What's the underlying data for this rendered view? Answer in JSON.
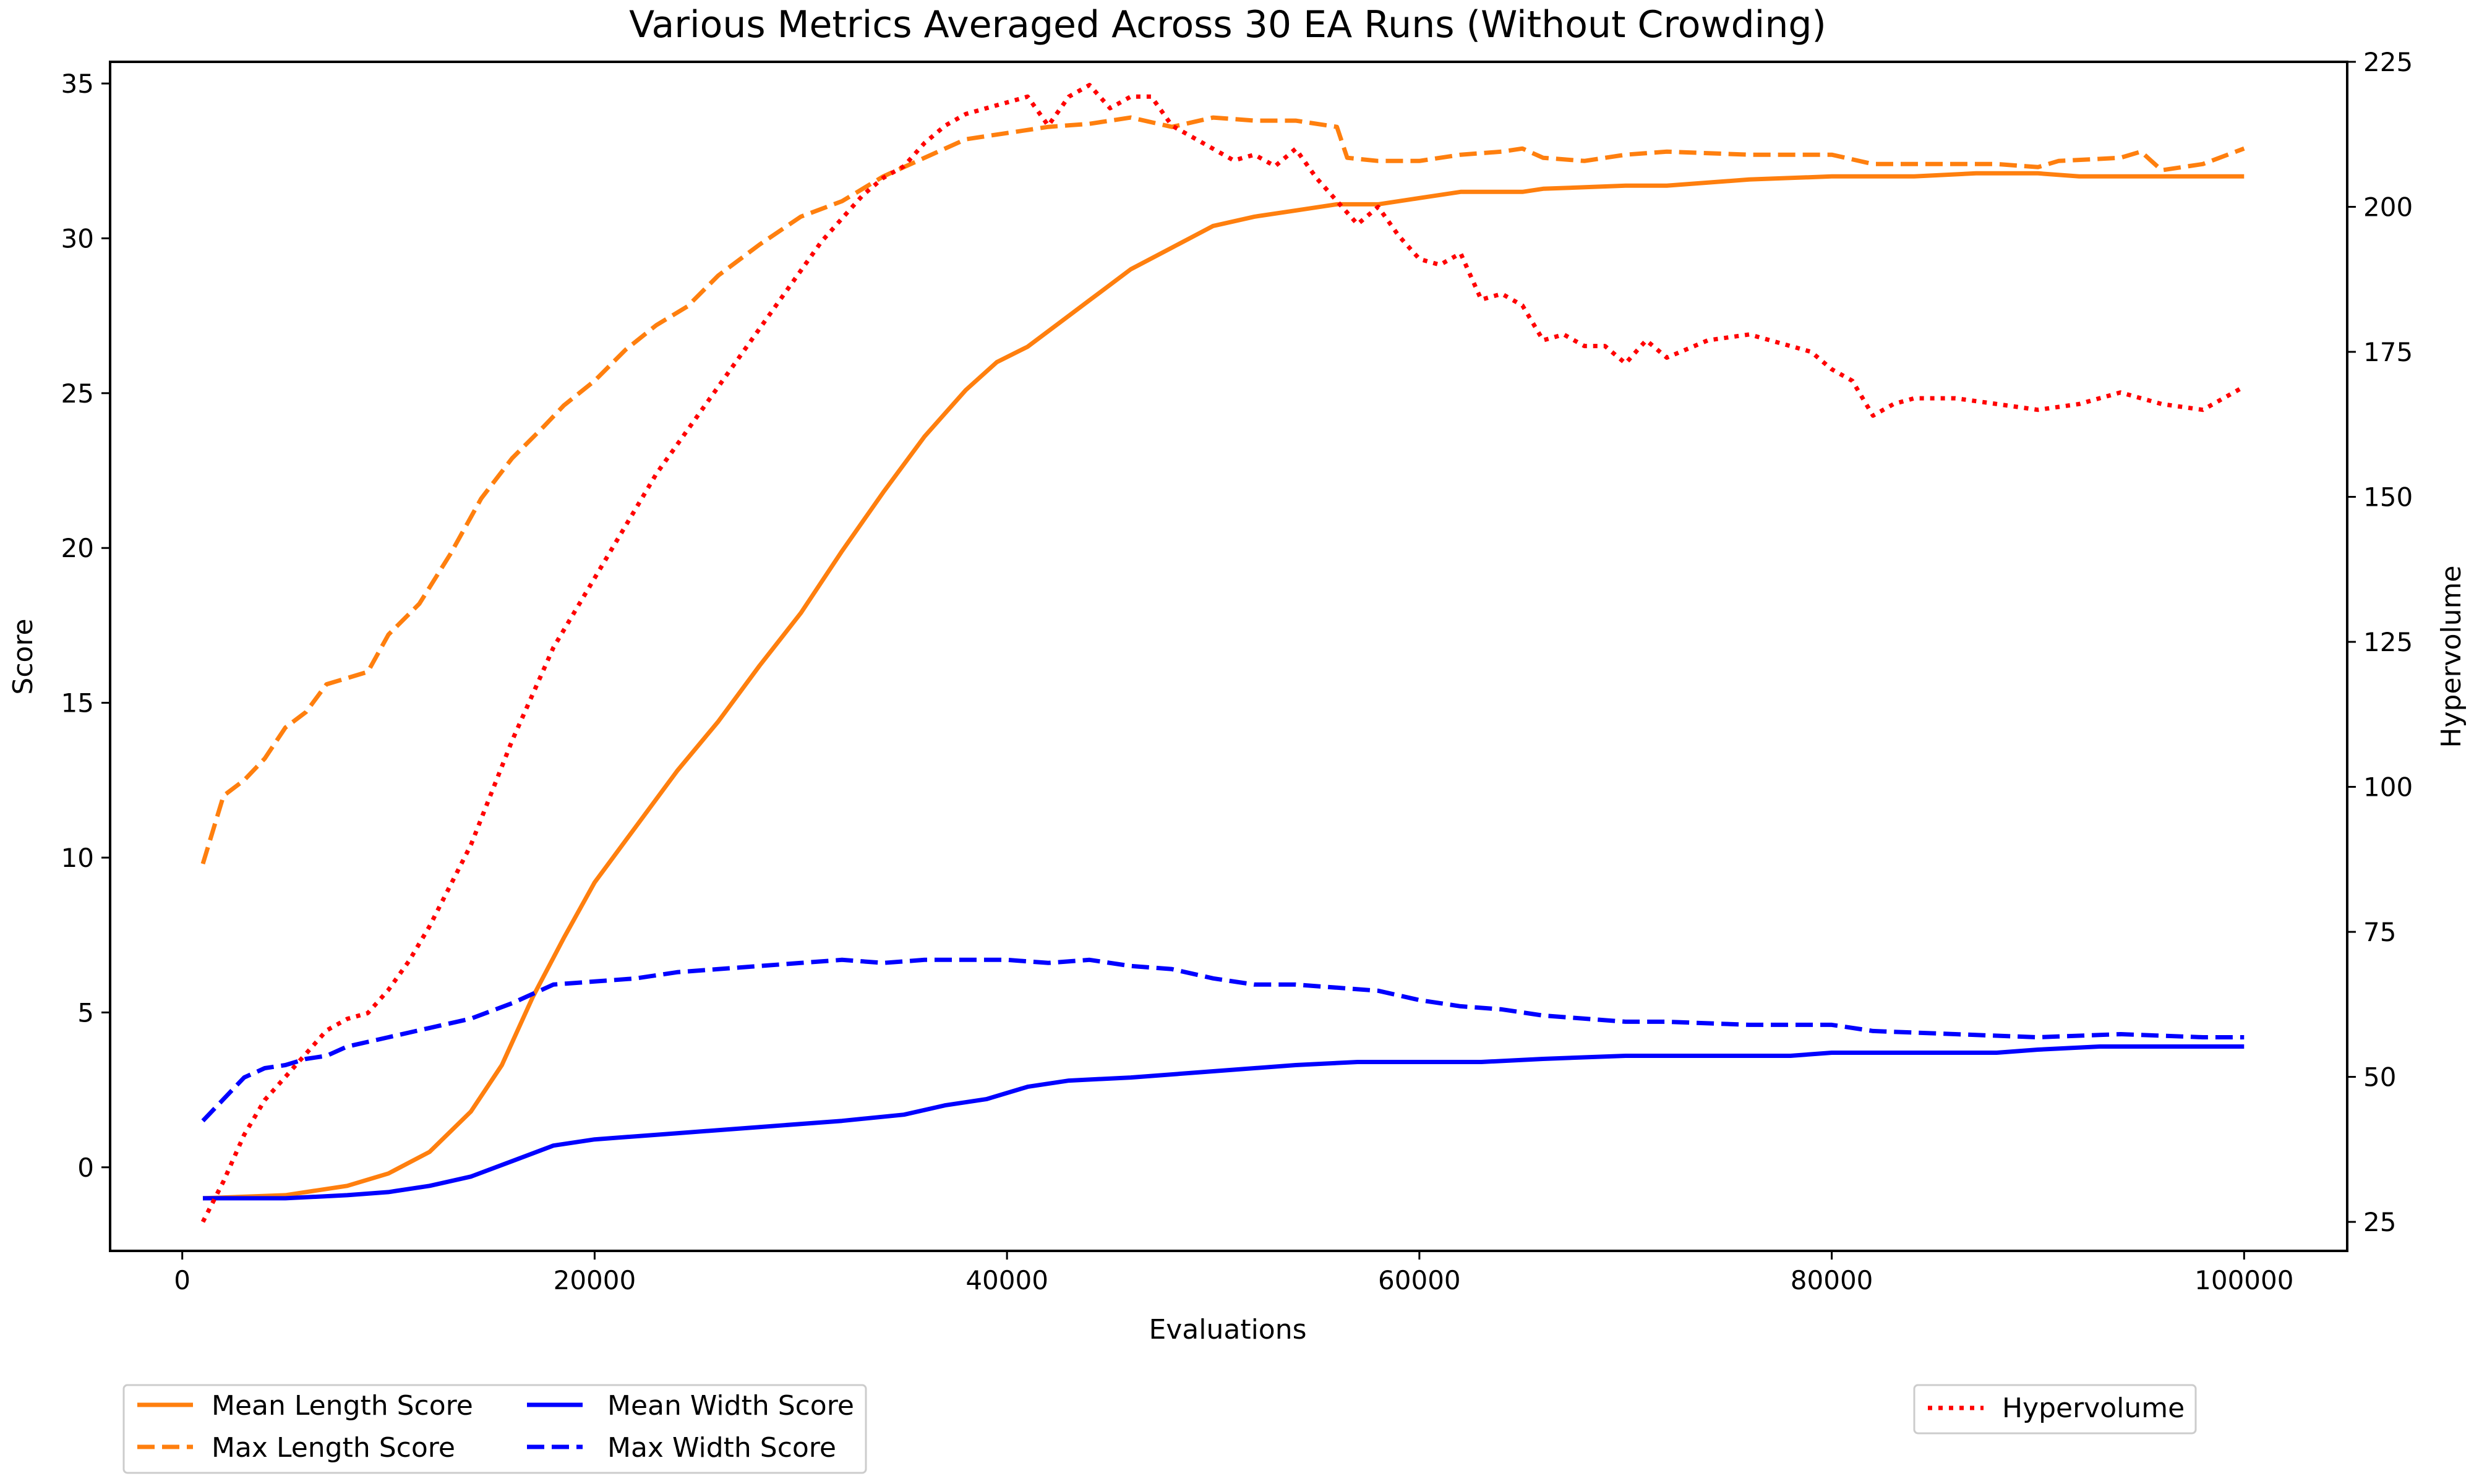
{
  "chart_data": {
    "type": "line",
    "title": "Various Metrics Averaged Across 30 EA Runs (Without Crowding)",
    "xlabel": "Evaluations",
    "ylabel": "Score",
    "y2label": "Hypervolume",
    "xlim": [
      -3500,
      105000
    ],
    "ylim": [
      -2.7,
      35.7
    ],
    "y2lim": [
      20,
      225
    ],
    "xticks": [
      0,
      20000,
      40000,
      60000,
      80000,
      100000
    ],
    "yticks": [
      0,
      5,
      10,
      15,
      20,
      25,
      30,
      35
    ],
    "y2ticks": [
      25,
      50,
      75,
      100,
      125,
      150,
      175,
      200,
      225
    ],
    "grid": false,
    "legend_left_placement": "below-left",
    "legend_right_placement": "below-right",
    "series": [
      {
        "name": "Mean Length Score",
        "axis": "left",
        "color": "#ff7f0e",
        "style": "solid",
        "points": [
          [
            1000,
            -1.0
          ],
          [
            5000,
            -0.9
          ],
          [
            8000,
            -0.6
          ],
          [
            10000,
            -0.2
          ],
          [
            12000,
            0.5
          ],
          [
            14000,
            1.8
          ],
          [
            15500,
            3.3
          ],
          [
            17000,
            5.5
          ],
          [
            18500,
            7.4
          ],
          [
            20000,
            9.2
          ],
          [
            22000,
            11.0
          ],
          [
            24000,
            12.8
          ],
          [
            26000,
            14.4
          ],
          [
            28000,
            16.2
          ],
          [
            30000,
            17.9
          ],
          [
            32000,
            19.9
          ],
          [
            34000,
            21.8
          ],
          [
            36000,
            23.6
          ],
          [
            38000,
            25.1
          ],
          [
            39500,
            26.0
          ],
          [
            41000,
            26.5
          ],
          [
            42000,
            27.0
          ],
          [
            44000,
            28.0
          ],
          [
            46000,
            29.0
          ],
          [
            48000,
            29.7
          ],
          [
            50000,
            30.4
          ],
          [
            52000,
            30.7
          ],
          [
            54000,
            30.9
          ],
          [
            56000,
            31.1
          ],
          [
            58000,
            31.1
          ],
          [
            60000,
            31.3
          ],
          [
            62000,
            31.5
          ],
          [
            65000,
            31.5
          ],
          [
            66000,
            31.6
          ],
          [
            70000,
            31.7
          ],
          [
            72000,
            31.7
          ],
          [
            74000,
            31.8
          ],
          [
            76000,
            31.9
          ],
          [
            80000,
            32.0
          ],
          [
            84000,
            32.0
          ],
          [
            87000,
            32.1
          ],
          [
            90000,
            32.1
          ],
          [
            92000,
            32.0
          ],
          [
            95000,
            32.0
          ],
          [
            100000,
            32.0
          ]
        ]
      },
      {
        "name": "Max Length Score",
        "axis": "left",
        "color": "#ff7f0e",
        "style": "dashed",
        "points": [
          [
            1000,
            9.8
          ],
          [
            2000,
            12.0
          ],
          [
            3000,
            12.5
          ],
          [
            4000,
            13.2
          ],
          [
            5000,
            14.2
          ],
          [
            6000,
            14.7
          ],
          [
            7000,
            15.6
          ],
          [
            8000,
            15.8
          ],
          [
            9000,
            16.0
          ],
          [
            10000,
            17.2
          ],
          [
            11500,
            18.2
          ],
          [
            13000,
            19.8
          ],
          [
            14500,
            21.6
          ],
          [
            16000,
            22.9
          ],
          [
            17500,
            23.9
          ],
          [
            18500,
            24.6
          ],
          [
            20000,
            25.4
          ],
          [
            21500,
            26.4
          ],
          [
            23000,
            27.2
          ],
          [
            24500,
            27.8
          ],
          [
            26000,
            28.8
          ],
          [
            28000,
            29.8
          ],
          [
            30000,
            30.7
          ],
          [
            32000,
            31.2
          ],
          [
            34000,
            32.0
          ],
          [
            36000,
            32.6
          ],
          [
            38000,
            33.2
          ],
          [
            40000,
            33.4
          ],
          [
            42000,
            33.6
          ],
          [
            44000,
            33.7
          ],
          [
            46000,
            33.9
          ],
          [
            48000,
            33.6
          ],
          [
            50000,
            33.9
          ],
          [
            52000,
            33.8
          ],
          [
            54000,
            33.8
          ],
          [
            56000,
            33.6
          ],
          [
            56500,
            32.6
          ],
          [
            58000,
            32.5
          ],
          [
            60000,
            32.5
          ],
          [
            62000,
            32.7
          ],
          [
            64000,
            32.8
          ],
          [
            65000,
            32.9
          ],
          [
            66000,
            32.6
          ],
          [
            68000,
            32.5
          ],
          [
            70000,
            32.7
          ],
          [
            72000,
            32.8
          ],
          [
            76000,
            32.7
          ],
          [
            80000,
            32.7
          ],
          [
            82000,
            32.4
          ],
          [
            84000,
            32.4
          ],
          [
            88000,
            32.4
          ],
          [
            90000,
            32.3
          ],
          [
            91000,
            32.5
          ],
          [
            94000,
            32.6
          ],
          [
            95000,
            32.8
          ],
          [
            96000,
            32.2
          ],
          [
            98000,
            32.4
          ],
          [
            100000,
            32.9
          ]
        ]
      },
      {
        "name": "Mean Width Score",
        "axis": "left",
        "color": "#0000ff",
        "style": "solid",
        "points": [
          [
            1000,
            -1.0
          ],
          [
            5000,
            -1.0
          ],
          [
            8000,
            -0.9
          ],
          [
            10000,
            -0.8
          ],
          [
            12000,
            -0.6
          ],
          [
            14000,
            -0.3
          ],
          [
            16000,
            0.2
          ],
          [
            18000,
            0.7
          ],
          [
            20000,
            0.9
          ],
          [
            24000,
            1.1
          ],
          [
            28000,
            1.3
          ],
          [
            32000,
            1.5
          ],
          [
            35000,
            1.7
          ],
          [
            37000,
            2.0
          ],
          [
            39000,
            2.2
          ],
          [
            41000,
            2.6
          ],
          [
            43000,
            2.8
          ],
          [
            46000,
            2.9
          ],
          [
            50000,
            3.1
          ],
          [
            54000,
            3.3
          ],
          [
            57000,
            3.4
          ],
          [
            60000,
            3.4
          ],
          [
            63000,
            3.4
          ],
          [
            66000,
            3.5
          ],
          [
            70000,
            3.6
          ],
          [
            74000,
            3.6
          ],
          [
            78000,
            3.6
          ],
          [
            80000,
            3.7
          ],
          [
            84000,
            3.7
          ],
          [
            88000,
            3.7
          ],
          [
            90000,
            3.8
          ],
          [
            93000,
            3.9
          ],
          [
            97000,
            3.9
          ],
          [
            100000,
            3.9
          ]
        ]
      },
      {
        "name": "Max Width Score",
        "axis": "left",
        "color": "#0000ff",
        "style": "dashed",
        "points": [
          [
            1000,
            1.5
          ],
          [
            2000,
            2.2
          ],
          [
            3000,
            2.9
          ],
          [
            4000,
            3.2
          ],
          [
            5000,
            3.3
          ],
          [
            6000,
            3.5
          ],
          [
            7000,
            3.6
          ],
          [
            8000,
            3.9
          ],
          [
            10000,
            4.2
          ],
          [
            12000,
            4.5
          ],
          [
            14000,
            4.8
          ],
          [
            16000,
            5.3
          ],
          [
            18000,
            5.9
          ],
          [
            20000,
            6.0
          ],
          [
            22000,
            6.1
          ],
          [
            24000,
            6.3
          ],
          [
            26000,
            6.4
          ],
          [
            28000,
            6.5
          ],
          [
            30000,
            6.6
          ],
          [
            32000,
            6.7
          ],
          [
            34000,
            6.6
          ],
          [
            36000,
            6.7
          ],
          [
            40000,
            6.7
          ],
          [
            42000,
            6.6
          ],
          [
            44000,
            6.7
          ],
          [
            46000,
            6.5
          ],
          [
            48000,
            6.4
          ],
          [
            50000,
            6.1
          ],
          [
            52000,
            5.9
          ],
          [
            54000,
            5.9
          ],
          [
            56000,
            5.8
          ],
          [
            58000,
            5.7
          ],
          [
            60000,
            5.4
          ],
          [
            62000,
            5.2
          ],
          [
            64000,
            5.1
          ],
          [
            66000,
            4.9
          ],
          [
            68000,
            4.8
          ],
          [
            70000,
            4.7
          ],
          [
            72000,
            4.7
          ],
          [
            76000,
            4.6
          ],
          [
            80000,
            4.6
          ],
          [
            82000,
            4.4
          ],
          [
            86000,
            4.3
          ],
          [
            90000,
            4.2
          ],
          [
            94000,
            4.3
          ],
          [
            98000,
            4.2
          ],
          [
            100000,
            4.2
          ]
        ]
      },
      {
        "name": "Hypervolume",
        "axis": "right",
        "color": "#ff0000",
        "style": "dotted",
        "points": [
          [
            1000,
            25
          ],
          [
            2000,
            32
          ],
          [
            3000,
            40
          ],
          [
            4000,
            46
          ],
          [
            5000,
            50
          ],
          [
            6000,
            54
          ],
          [
            7000,
            58
          ],
          [
            8000,
            60
          ],
          [
            9000,
            61
          ],
          [
            10000,
            65
          ],
          [
            11000,
            70
          ],
          [
            12000,
            76
          ],
          [
            13000,
            83
          ],
          [
            14000,
            90
          ],
          [
            15000,
            99
          ],
          [
            16000,
            108
          ],
          [
            17000,
            116
          ],
          [
            18000,
            124
          ],
          [
            19000,
            130
          ],
          [
            20000,
            136
          ],
          [
            21000,
            142
          ],
          [
            22000,
            148
          ],
          [
            23000,
            154
          ],
          [
            24000,
            159
          ],
          [
            25000,
            164
          ],
          [
            26000,
            169
          ],
          [
            27000,
            174
          ],
          [
            28000,
            179
          ],
          [
            29000,
            184
          ],
          [
            30000,
            189
          ],
          [
            31000,
            194
          ],
          [
            32000,
            198
          ],
          [
            33000,
            202
          ],
          [
            34000,
            205
          ],
          [
            35000,
            207
          ],
          [
            36000,
            211
          ],
          [
            37000,
            214
          ],
          [
            38000,
            216
          ],
          [
            39000,
            217
          ],
          [
            40000,
            218
          ],
          [
            41000,
            219
          ],
          [
            42000,
            214
          ],
          [
            43000,
            219
          ],
          [
            44000,
            221
          ],
          [
            45000,
            217
          ],
          [
            46000,
            219
          ],
          [
            47000,
            219
          ],
          [
            48000,
            214
          ],
          [
            49000,
            212
          ],
          [
            50000,
            210
          ],
          [
            51000,
            208
          ],
          [
            52000,
            209
          ],
          [
            53000,
            207
          ],
          [
            54000,
            210
          ],
          [
            55000,
            205
          ],
          [
            56000,
            201
          ],
          [
            57000,
            197
          ],
          [
            58000,
            200
          ],
          [
            59000,
            195
          ],
          [
            60000,
            191
          ],
          [
            61000,
            190
          ],
          [
            62000,
            192
          ],
          [
            63000,
            184
          ],
          [
            64000,
            185
          ],
          [
            65000,
            183
          ],
          [
            66000,
            177
          ],
          [
            67000,
            178
          ],
          [
            68000,
            176
          ],
          [
            69000,
            176
          ],
          [
            70000,
            173
          ],
          [
            71000,
            177
          ],
          [
            72000,
            174
          ],
          [
            74000,
            177
          ],
          [
            76000,
            178
          ],
          [
            78000,
            176
          ],
          [
            79000,
            175
          ],
          [
            80000,
            172
          ],
          [
            81000,
            170
          ],
          [
            82000,
            164
          ],
          [
            83000,
            166
          ],
          [
            84000,
            167
          ],
          [
            86000,
            167
          ],
          [
            88000,
            166
          ],
          [
            90000,
            165
          ],
          [
            92000,
            166
          ],
          [
            94000,
            168
          ],
          [
            96000,
            166
          ],
          [
            98000,
            165
          ],
          [
            100000,
            169
          ]
        ]
      }
    ]
  }
}
